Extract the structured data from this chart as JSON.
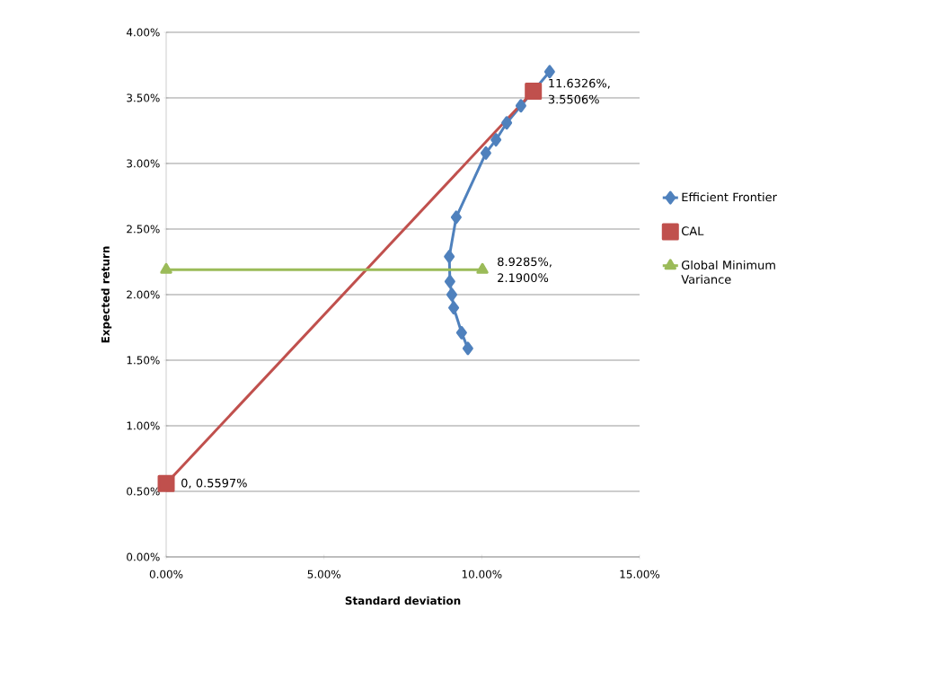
{
  "chart_data": {
    "type": "line",
    "xlabel": "Standard deviation",
    "ylabel": "Expected return",
    "xlim": [
      0,
      15
    ],
    "ylim": [
      0,
      4
    ],
    "xticks": [
      {
        "value": 0,
        "label": "0.00%"
      },
      {
        "value": 5,
        "label": "5.00%"
      },
      {
        "value": 10,
        "label": "10.00%"
      },
      {
        "value": 15,
        "label": "15.00%"
      }
    ],
    "yticks": [
      {
        "value": 0,
        "label": "0.00%"
      },
      {
        "value": 0.5,
        "label": "0.50%"
      },
      {
        "value": 1,
        "label": "1.00%"
      },
      {
        "value": 1.5,
        "label": "1.50%"
      },
      {
        "value": 2,
        "label": "2.00%"
      },
      {
        "value": 2.5,
        "label": "2.50%"
      },
      {
        "value": 3,
        "label": "3.00%"
      },
      {
        "value": 3.5,
        "label": "3.50%"
      },
      {
        "value": 4,
        "label": "4.00%"
      }
    ],
    "grid": "y",
    "legend": "right",
    "series": [
      {
        "name": "Efficient Frontier",
        "color": "#4f81bd",
        "marker": "diamond",
        "x": [
          9.56,
          9.36,
          9.11,
          9.05,
          8.99,
          8.97,
          9.19,
          10.13,
          10.45,
          10.79,
          11.24,
          11.81,
          12.15
        ],
        "values": [
          1.59,
          1.71,
          1.9,
          2.0,
          2.1,
          2.29,
          2.59,
          3.08,
          3.18,
          3.31,
          3.44,
          null,
          3.7
        ]
      },
      {
        "name": "CAL",
        "color": "#c0504d",
        "marker": "square",
        "x": [
          0,
          11.6326
        ],
        "values": [
          0.5597,
          3.5506
        ]
      },
      {
        "name": "Global Minimum Variance",
        "color": "#9bbb59",
        "marker": "triangle",
        "x": [
          0,
          10.02
        ],
        "values": [
          2.19,
          2.19
        ]
      }
    ],
    "annotations": [
      {
        "text": "11.6326%, 3.5506%",
        "x": 11.6326,
        "y": 3.5506
      },
      {
        "text": "8.9285%, 2.1900%",
        "x": 10.02,
        "y": 2.19
      },
      {
        "text": "0, 0.5597%",
        "x": 0,
        "y": 0.5597
      }
    ]
  }
}
